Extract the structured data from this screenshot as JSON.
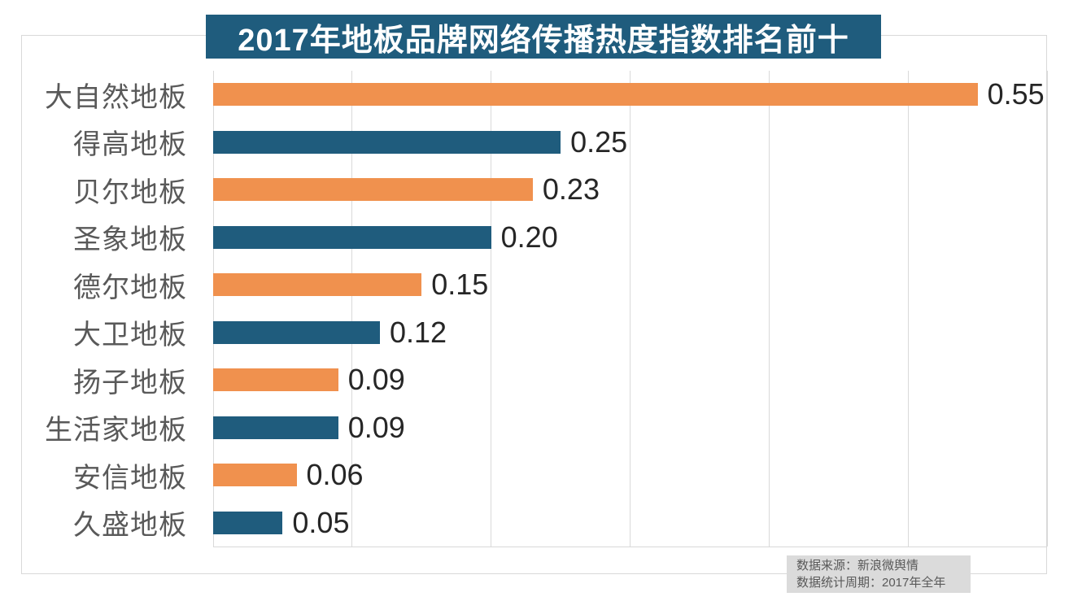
{
  "source": {
    "line1": "数据来源：新浪微舆情",
    "line2": "数据统计周期：2017年全年"
  },
  "colors": {
    "banner_bg": "#1f5c7d",
    "bar_orange": "#f0914e",
    "bar_teal": "#1f5c7d",
    "grid": "#d9d9d9",
    "category_label": "#595959",
    "value_label": "#262626",
    "source_bg": "#dbdbdb"
  },
  "chart_data": {
    "type": "bar",
    "orientation": "horizontal",
    "title": "2017年地板品牌网络传播热度指数排名前十",
    "categories": [
      "大自然地板",
      "得高地板",
      "贝尔地板",
      "圣象地板",
      "德尔地板",
      "大卫地板",
      "扬子地板",
      "生活家地板",
      "安信地板",
      "久盛地板"
    ],
    "values": [
      0.55,
      0.25,
      0.23,
      0.2,
      0.15,
      0.12,
      0.09,
      0.09,
      0.06,
      0.05
    ],
    "value_labels": [
      "0.55",
      "0.25",
      "0.23",
      "0.20",
      "0.15",
      "0.12",
      "0.09",
      "0.09",
      "0.06",
      "0.05"
    ],
    "xlabel": "",
    "ylabel": "",
    "xlim": [
      0,
      0.6
    ],
    "gridline_values": [
      0,
      0.1,
      0.2,
      0.3,
      0.4,
      0.5,
      0.6
    ],
    "grid": "vertical-only",
    "legend": "none",
    "bar_color_pattern": [
      "#f0914e",
      "#1f5c7d"
    ],
    "source_note": "数据来源：新浪微舆情",
    "period_note": "数据统计周期：2017年全年"
  }
}
